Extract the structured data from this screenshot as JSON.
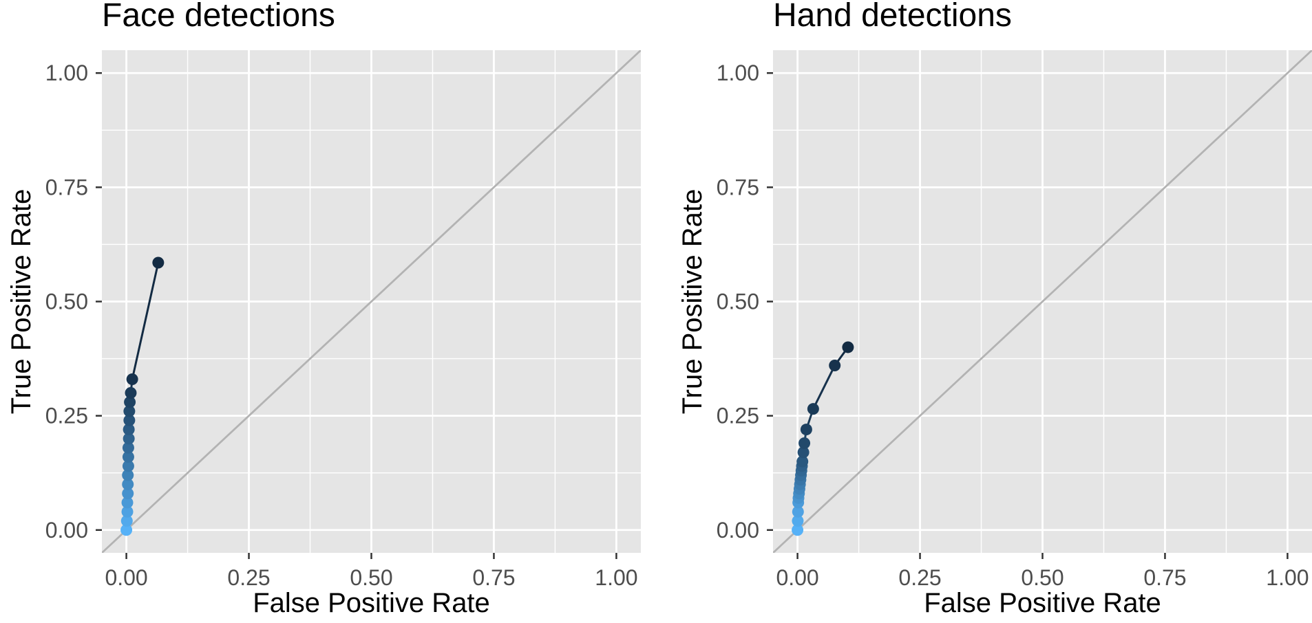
{
  "chart_data": [
    {
      "type": "line",
      "title": "Face detections",
      "xlabel": "False Positive Rate",
      "ylabel": "True Positive Rate",
      "xlim": [
        -0.05,
        1.05
      ],
      "ylim": [
        -0.05,
        1.05
      ],
      "x_ticks": [
        "0.00",
        "0.25",
        "0.50",
        "0.75",
        "1.00"
      ],
      "y_ticks": [
        "0.00",
        "0.25",
        "0.50",
        "0.75",
        "1.00"
      ],
      "grid": true,
      "diagonal_reference": true,
      "colors": {
        "panel": "#e5e5e5",
        "grid": "#ffffff",
        "reference_line": "#b3b3b3",
        "curve_high": "#132b43",
        "curve_low": "#56b1f7"
      },
      "series": [
        {
          "x": [
            0.0,
            0.001,
            0.002,
            0.002,
            0.003,
            0.003,
            0.003,
            0.004,
            0.004,
            0.004,
            0.005,
            0.005,
            0.006,
            0.006,
            0.007,
            0.009,
            0.012,
            0.065
          ],
          "y": [
            0.0,
            0.02,
            0.04,
            0.06,
            0.08,
            0.1,
            0.12,
            0.14,
            0.16,
            0.18,
            0.2,
            0.22,
            0.24,
            0.26,
            0.28,
            0.3,
            0.33,
            0.585
          ]
        }
      ]
    },
    {
      "type": "line",
      "title": "Hand detections",
      "xlabel": "False Positive Rate",
      "ylabel": "True Positive Rate",
      "xlim": [
        -0.05,
        1.05
      ],
      "ylim": [
        -0.05,
        1.05
      ],
      "x_ticks": [
        "0.00",
        "0.25",
        "0.50",
        "0.75",
        "1.00"
      ],
      "y_ticks": [
        "0.00",
        "0.25",
        "0.50",
        "0.75",
        "1.00"
      ],
      "grid": true,
      "diagonal_reference": true,
      "colors": {
        "panel": "#e5e5e5",
        "grid": "#ffffff",
        "reference_line": "#b3b3b3",
        "curve_high": "#132b43",
        "curve_low": "#56b1f7"
      },
      "series": [
        {
          "x": [
            0.0,
            0.0005,
            0.001,
            0.0015,
            0.002,
            0.003,
            0.004,
            0.005,
            0.006,
            0.007,
            0.008,
            0.009,
            0.01,
            0.012,
            0.014,
            0.018,
            0.032,
            0.076,
            0.103
          ],
          "y": [
            0.0,
            0.02,
            0.04,
            0.06,
            0.07,
            0.08,
            0.09,
            0.1,
            0.11,
            0.12,
            0.13,
            0.14,
            0.15,
            0.17,
            0.19,
            0.22,
            0.265,
            0.36,
            0.4
          ]
        }
      ]
    }
  ]
}
